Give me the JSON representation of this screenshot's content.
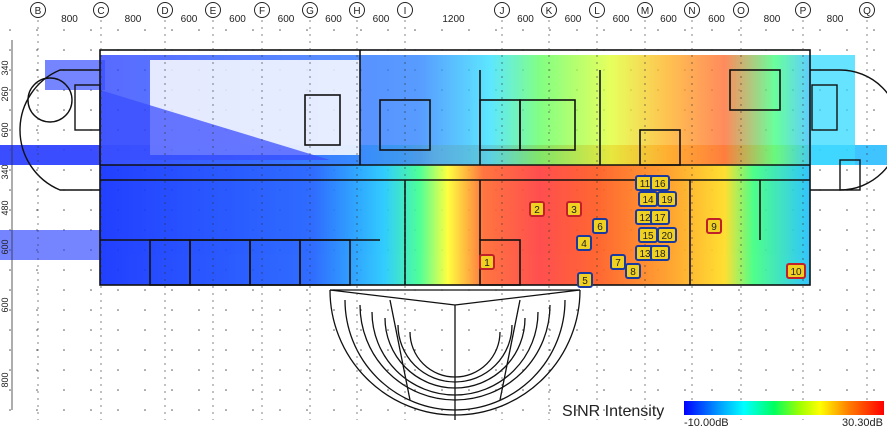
{
  "grid": {
    "column_markers": [
      "B",
      "C",
      "D",
      "E",
      "F",
      "G",
      "H",
      "I",
      "J",
      "K",
      "L",
      "M",
      "N",
      "O",
      "P",
      "Q"
    ],
    "column_spacings": [
      "800",
      "800",
      "600",
      "600",
      "600",
      "600",
      "600",
      "1200",
      "600",
      "600",
      "600",
      "600",
      "600",
      "800",
      "800"
    ],
    "row_spacings": [
      "340",
      "260",
      "600",
      "340",
      "480",
      "600",
      "600",
      "800"
    ]
  },
  "access_points": [
    {
      "id": "1",
      "style": "red"
    },
    {
      "id": "2",
      "style": "red"
    },
    {
      "id": "3",
      "style": "red"
    },
    {
      "id": "4",
      "style": "blue"
    },
    {
      "id": "5",
      "style": "blue"
    },
    {
      "id": "6",
      "style": "blue"
    },
    {
      "id": "7",
      "style": "blue"
    },
    {
      "id": "8",
      "style": "blue"
    },
    {
      "id": "9",
      "style": "red"
    },
    {
      "id": "10",
      "style": "red"
    },
    {
      "id": "11",
      "style": "blue"
    },
    {
      "id": "12",
      "style": "blue"
    },
    {
      "id": "13",
      "style": "blue"
    },
    {
      "id": "14",
      "style": "blue"
    },
    {
      "id": "15",
      "style": "blue"
    },
    {
      "id": "16",
      "style": "blue"
    },
    {
      "id": "17",
      "style": "blue"
    },
    {
      "id": "18",
      "style": "blue"
    },
    {
      "id": "19",
      "style": "blue"
    },
    {
      "id": "20",
      "style": "blue"
    }
  ],
  "legend": {
    "title": "SINR Intensity",
    "min_label": "-10.00dB",
    "max_label": "30.30dB"
  },
  "colors": {
    "red_marker_border": "#c0202a",
    "blue_marker_border": "#1a3aa0",
    "marker_fill": "#f0d020"
  }
}
